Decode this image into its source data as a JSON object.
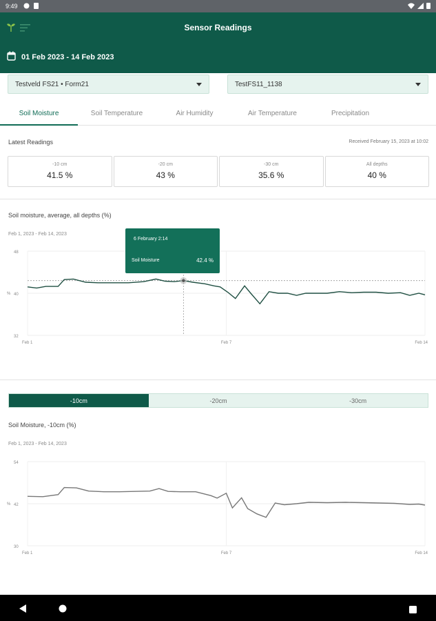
{
  "status_bar": {
    "time": "9:49"
  },
  "app_bar": {
    "title": "Sensor Readings",
    "date_range": "01 Feb 2023 - 14 Feb 2023"
  },
  "selectors": {
    "field": "Testveld FS21 • Form21",
    "sensor": "TestFS11_1138"
  },
  "tabs": [
    {
      "label": "Soil Moisture",
      "active": true
    },
    {
      "label": "Soil Temperature",
      "active": false
    },
    {
      "label": "Air Humidity",
      "active": false
    },
    {
      "label": "Air Temperature",
      "active": false
    },
    {
      "label": "Precipitation",
      "active": false
    }
  ],
  "latest": {
    "label": "Latest Readings",
    "received": "Received February 15, 2023 at 10:02",
    "cards": [
      {
        "depth": "-10 cm",
        "value": "41.5 %"
      },
      {
        "depth": "-20 cm",
        "value": "43 %"
      },
      {
        "depth": "-30 cm",
        "value": "35.6 %"
      },
      {
        "depth": "All depths",
        "value": "40 %"
      }
    ]
  },
  "chart1": {
    "title": "Soil moisture, average, all depths (%)",
    "range": "Feb 1, 2023 - Feb 14, 2023",
    "tooltip": {
      "date": "6 February 2:14",
      "series": "Soil Moisture",
      "value": "42.4 %"
    }
  },
  "depth_tabs": [
    {
      "label": "-10cm",
      "active": true
    },
    {
      "label": "-20cm",
      "active": false
    },
    {
      "label": "-30cm",
      "active": false
    }
  ],
  "chart2": {
    "title": "Soil Moisture, -10cm (%)",
    "range": "Feb 1, 2023 - Feb 14, 2023"
  },
  "colors": {
    "primary": "#0f5a49",
    "accent": "#137059",
    "tab_active": "#0f6b55",
    "light": "#e6f3ee"
  },
  "chart_data": [
    {
      "type": "line",
      "y_unit_label": "%",
      "ylim": [
        32,
        48
      ],
      "yticks": [
        "48",
        "40",
        "32"
      ],
      "xticks": [
        "Feb 1",
        "Feb 7",
        "Feb 14"
      ],
      "xlim": [
        1,
        14
      ],
      "reference_line": 42.4,
      "highlight": {
        "x": 6.1,
        "y": 42.4
      },
      "series": [
        {
          "x": [
            1,
            1.3,
            1.6,
            2.0,
            2.2,
            2.5,
            2.9,
            3.3,
            3.8,
            4.3,
            4.8,
            5.2,
            5.5,
            5.8,
            6.1,
            6.4,
            6.8,
            7.1,
            7.3,
            7.55,
            7.8,
            8.1,
            8.3,
            8.6,
            8.9,
            9.2,
            9.5,
            9.8,
            10.1,
            10.4,
            10.8,
            11.2,
            11.6,
            12,
            12.4,
            12.8,
            13.2,
            13.5,
            13.8,
            14
          ],
          "y": [
            41.2,
            41.0,
            41.3,
            41.3,
            42.6,
            42.7,
            42.1,
            42.0,
            42.0,
            42.0,
            42.2,
            42.7,
            42.3,
            42.2,
            42.4,
            42.1,
            41.8,
            41.4,
            41.2,
            40.2,
            39.0,
            41.4,
            40.0,
            38.0,
            40.3,
            40.0,
            40.0,
            39.6,
            40.0,
            40.0,
            40.0,
            40.3,
            40.1,
            40.2,
            40.2,
            40.0,
            40.1,
            39.6,
            40.0,
            39.7
          ]
        }
      ]
    },
    {
      "type": "line",
      "y_unit_label": "%",
      "ylim": [
        30,
        54
      ],
      "yticks": [
        "54",
        "42",
        "30"
      ],
      "xticks": [
        "Feb 1",
        "Feb 7",
        "Feb 14"
      ],
      "xlim": [
        1,
        14
      ],
      "series": [
        {
          "x": [
            1,
            1.5,
            2.0,
            2.2,
            2.6,
            3.0,
            3.5,
            4.0,
            4.5,
            5.0,
            5.3,
            5.6,
            6.0,
            6.5,
            7.0,
            7.2,
            7.5,
            7.7,
            8.0,
            8.2,
            8.5,
            8.8,
            9.1,
            9.4,
            9.8,
            10.2,
            10.8,
            11.4,
            12,
            12.5,
            13,
            13.5,
            13.8,
            14
          ],
          "y": [
            44.1,
            44.0,
            44.6,
            46.6,
            46.5,
            45.6,
            45.4,
            45.4,
            45.5,
            45.6,
            46.3,
            45.5,
            45.4,
            45.4,
            44.3,
            43.6,
            45.0,
            40.8,
            43.7,
            40.6,
            39.1,
            38.1,
            42.2,
            41.7,
            42.0,
            42.4,
            42.3,
            42.4,
            42.3,
            42.2,
            42.1,
            41.8,
            41.9,
            41.6
          ]
        }
      ]
    }
  ]
}
